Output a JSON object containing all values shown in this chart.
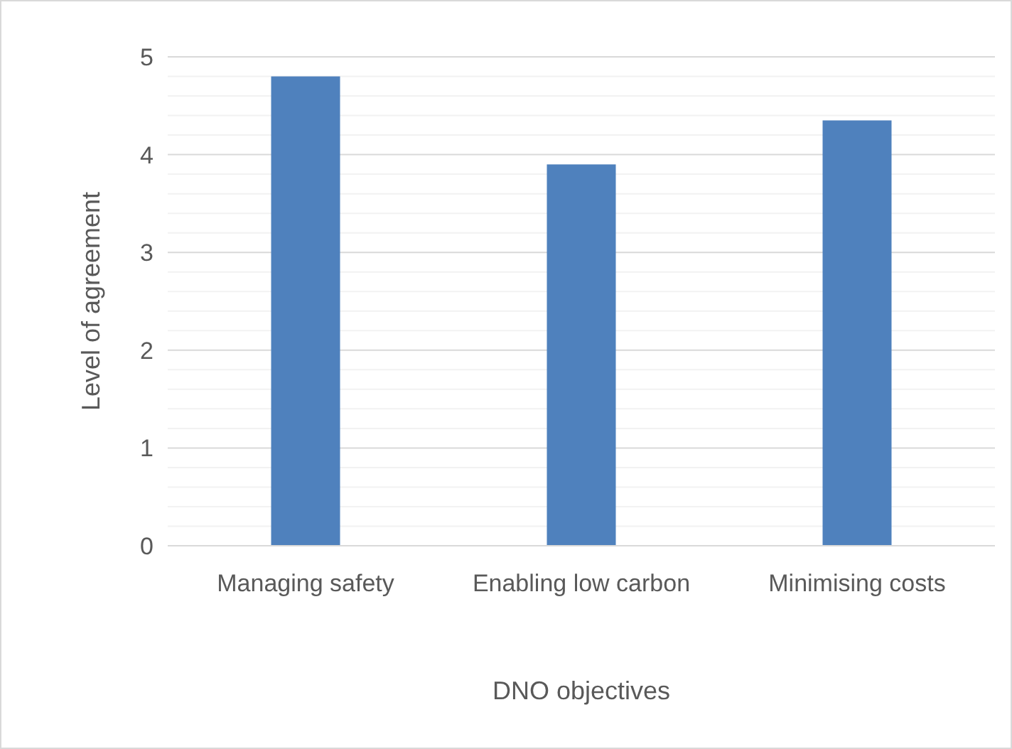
{
  "chart_data": {
    "type": "bar",
    "xlabel": "DNO objectives",
    "ylabel": "Level of agreement",
    "categories": [
      "Managing safety",
      "Enabling low carbon",
      "Minimising costs"
    ],
    "values": [
      4.8,
      3.9,
      4.35
    ],
    "color": "#4f81bd",
    "ylim": [
      0,
      5
    ],
    "yticks": [
      0,
      {
        "value": 0.2,
        "label": null
      },
      {
        "value": 0.4,
        "label": null
      },
      {
        "value": 0.6,
        "label": null
      },
      {
        "value": 0.8,
        "label": null
      },
      1,
      {
        "value": 1.2,
        "label": null
      },
      {
        "value": 1.4,
        "label": null
      },
      {
        "value": 1.6,
        "label": null
      },
      {
        "value": 1.8,
        "label": null
      },
      2,
      {
        "value": 2.2,
        "label": null
      },
      {
        "value": 2.4,
        "label": null
      },
      {
        "value": 2.6,
        "label": null
      },
      {
        "value": 2.8,
        "label": null
      },
      3,
      {
        "value": 3.2,
        "label": null
      },
      {
        "value": 3.4,
        "label": null
      },
      {
        "value": 3.6,
        "label": null
      },
      {
        "value": 3.8,
        "label": null
      },
      4,
      {
        "value": 4.2,
        "label": null
      },
      {
        "value": 4.4,
        "label": null
      },
      {
        "value": 4.6,
        "label": null
      },
      {
        "value": 4.8,
        "label": null
      },
      5
    ],
    "grid": "y"
  }
}
